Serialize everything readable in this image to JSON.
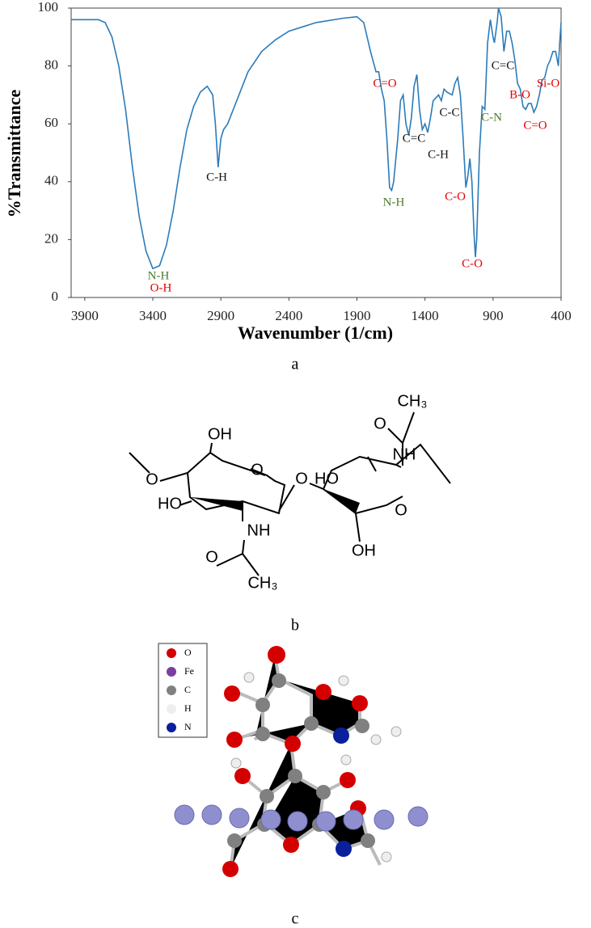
{
  "chart_data": {
    "type": "line",
    "xlabel": "Wavenumber (1/cm)",
    "ylabel": "%Transmittance",
    "panel": "a",
    "xlim": [
      4000,
      400
    ],
    "ylim": [
      0,
      100
    ],
    "xticks": [
      3900,
      3400,
      2900,
      2400,
      1900,
      1400,
      900,
      400
    ],
    "yticks": [
      0,
      20,
      40,
      60,
      80,
      100
    ],
    "series": [
      {
        "color": "#2b7bba",
        "x": [
          4000,
          3800,
          3750,
          3700,
          3650,
          3600,
          3550,
          3500,
          3450,
          3400,
          3350,
          3300,
          3250,
          3200,
          3150,
          3100,
          3050,
          3000,
          2960,
          2940,
          2920,
          2900,
          2880,
          2850,
          2800,
          2700,
          2600,
          2500,
          2400,
          2200,
          2000,
          1900,
          1850,
          1800,
          1760,
          1740,
          1720,
          1700,
          1680,
          1660,
          1645,
          1630,
          1600,
          1580,
          1560,
          1540,
          1520,
          1500,
          1480,
          1460,
          1440,
          1420,
          1400,
          1380,
          1360,
          1340,
          1300,
          1280,
          1260,
          1240,
          1200,
          1180,
          1160,
          1140,
          1120,
          1100,
          1085,
          1070,
          1055,
          1040,
          1030,
          1020,
          1000,
          980,
          960,
          940,
          920,
          900,
          890,
          870,
          860,
          840,
          820,
          800,
          780,
          760,
          740,
          720,
          700,
          680,
          660,
          640,
          620,
          600,
          580,
          560,
          540,
          520,
          500,
          480,
          460,
          440,
          420,
          410,
          400
        ],
        "values": [
          96,
          96,
          95,
          90,
          80,
          65,
          45,
          28,
          16,
          10,
          11,
          18,
          30,
          45,
          58,
          66,
          71,
          73,
          70,
          60,
          45,
          55,
          58,
          60,
          66,
          78,
          85,
          89,
          92,
          95,
          96.5,
          97,
          95,
          85,
          78,
          78,
          72,
          68,
          55,
          38,
          37,
          40,
          55,
          68,
          70,
          60,
          56,
          62,
          73,
          77,
          65,
          58,
          60,
          57,
          62,
          68,
          70,
          68,
          72,
          71,
          70,
          74,
          76,
          70,
          55,
          38,
          42,
          48,
          40,
          22,
          14,
          20,
          50,
          66,
          65,
          88,
          96,
          90,
          88,
          95,
          100,
          97,
          85,
          92,
          92,
          88,
          82,
          74,
          72,
          66,
          65,
          67,
          67,
          64,
          66,
          70,
          75,
          76,
          80,
          82,
          85,
          85,
          80,
          88,
          95
        ]
      }
    ],
    "annotations": [
      {
        "text": "N-H",
        "color": "#4a7a2a"
      },
      {
        "text": "O-H",
        "color": "#e00000"
      },
      {
        "text": "C-H",
        "color": "#111111"
      },
      {
        "text": "C=O",
        "color": "#e00000"
      },
      {
        "text": "N-H",
        "color": "#4a7a2a"
      },
      {
        "text": "C=C",
        "color": "#111111"
      },
      {
        "text": "C-H",
        "color": "#111111"
      },
      {
        "text": "C-C",
        "color": "#111111"
      },
      {
        "text": "C-O",
        "color": "#e00000"
      },
      {
        "text": "C-O",
        "color": "#e00000"
      },
      {
        "text": "C=C",
        "color": "#111111"
      },
      {
        "text": "C-N",
        "color": "#4a7a2a"
      },
      {
        "text": "B-O",
        "color": "#e00000"
      },
      {
        "text": "C=O",
        "color": "#e00000"
      },
      {
        "text": "Si-O",
        "color": "#e00000"
      }
    ]
  },
  "structure": {
    "panel": "b",
    "labels": [
      "CH₃",
      "O",
      "NH",
      "OH",
      "O",
      "HO",
      "O",
      "O",
      "HO",
      "O",
      "NH",
      "OH",
      "O",
      "CH₃"
    ]
  },
  "model": {
    "panel": "c",
    "legend": [
      {
        "name": "O",
        "color": "#d40000"
      },
      {
        "name": "Fe",
        "color": "#7b3fa0"
      },
      {
        "name": "C",
        "color": "#808080"
      },
      {
        "name": "H",
        "color": "#eeeeee"
      },
      {
        "name": "N",
        "color": "#0a1f9c"
      }
    ]
  }
}
